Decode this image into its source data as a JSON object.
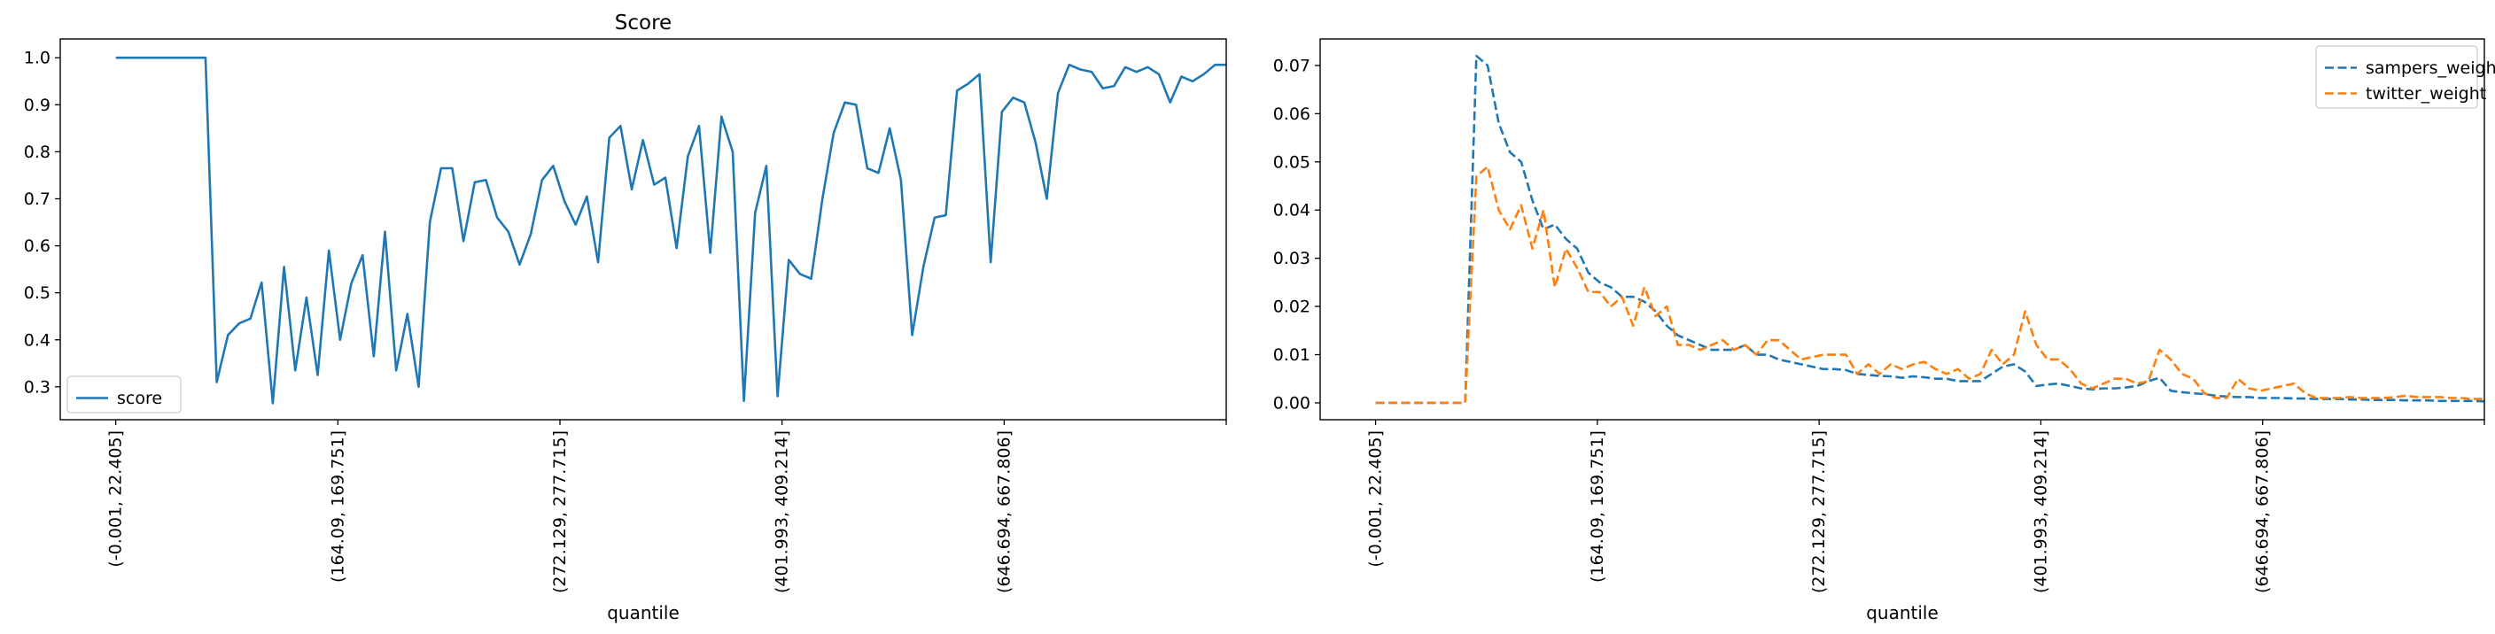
{
  "chart_data": [
    {
      "type": "line",
      "title": "Score",
      "xlabel": "quantile",
      "ylabel": "",
      "ylim": [
        0.23,
        1.04
      ],
      "xlim": [
        -0.05,
        1.0
      ],
      "x_tick_labels": [
        "(-0.001, 22.405]",
        "(164.09, 169.751]",
        "(272.129, 277.715]",
        "(401.993, 409.214]",
        "(646.694, 667.806]",
        ""
      ],
      "y_ticks": [
        0.3,
        0.4,
        0.5,
        0.6,
        0.7,
        0.8,
        0.9,
        1.0
      ],
      "y_tick_labels": [
        "0.3",
        "0.4",
        "0.5",
        "0.6",
        "0.7",
        "0.8",
        "0.9",
        "1.0"
      ],
      "legend": "lower left",
      "grid": false,
      "series": [
        {
          "name": "score",
          "color": "#1f77b4",
          "dash": "solid",
          "values": [
            1.0,
            1.0,
            1.0,
            1.0,
            1.0,
            1.0,
            1.0,
            1.0,
            1.0,
            0.31,
            0.41,
            0.435,
            0.445,
            0.522,
            0.265,
            0.555,
            0.335,
            0.49,
            0.325,
            0.59,
            0.4,
            0.52,
            0.58,
            0.365,
            0.63,
            0.335,
            0.455,
            0.3,
            0.65,
            0.765,
            0.765,
            0.61,
            0.735,
            0.74,
            0.66,
            0.63,
            0.56,
            0.625,
            0.74,
            0.77,
            0.695,
            0.645,
            0.705,
            0.565,
            0.83,
            0.855,
            0.72,
            0.825,
            0.73,
            0.745,
            0.595,
            0.79,
            0.855,
            0.585,
            0.875,
            0.8,
            0.27,
            0.67,
            0.77,
            0.28,
            0.57,
            0.54,
            0.53,
            0.7,
            0.84,
            0.905,
            0.9,
            0.765,
            0.755,
            0.85,
            0.74,
            0.41,
            0.555,
            0.66,
            0.665,
            0.93,
            0.945,
            0.965,
            0.565,
            0.885,
            0.915,
            0.905,
            0.82,
            0.7,
            0.925,
            0.985,
            0.975,
            0.97,
            0.935,
            0.94,
            0.98,
            0.97,
            0.98,
            0.965,
            0.905,
            0.96,
            0.95,
            0.965,
            0.985,
            0.985
          ]
        }
      ]
    },
    {
      "type": "line",
      "title": "",
      "xlabel": "quantile",
      "ylabel": "",
      "ylim": [
        -0.0035,
        0.0755
      ],
      "xlim": [
        -0.05,
        1.0
      ],
      "x_tick_labels": [
        "(-0.001, 22.405]",
        "(164.09, 169.751]",
        "(272.129, 277.715]",
        "(401.993, 409.214]",
        "(646.694, 667.806]",
        ""
      ],
      "y_ticks": [
        0.0,
        0.01,
        0.02,
        0.03,
        0.04,
        0.05,
        0.06,
        0.07
      ],
      "y_tick_labels": [
        "0.00",
        "0.01",
        "0.02",
        "0.03",
        "0.04",
        "0.05",
        "0.06",
        "0.07"
      ],
      "legend": "upper right",
      "grid": false,
      "series": [
        {
          "name": "sampers_weight",
          "color": "#1f77b4",
          "dash": "dashed",
          "values": [
            0.0,
            0.0,
            0.0,
            0.0,
            0.0,
            0.0,
            0.0,
            0.0,
            0.0,
            0.072,
            0.07,
            0.058,
            0.052,
            0.05,
            0.042,
            0.036,
            0.037,
            0.034,
            0.032,
            0.027,
            0.025,
            0.024,
            0.022,
            0.022,
            0.021,
            0.019,
            0.016,
            0.014,
            0.013,
            0.012,
            0.011,
            0.011,
            0.011,
            0.012,
            0.01,
            0.01,
            0.009,
            0.0085,
            0.008,
            0.0075,
            0.007,
            0.007,
            0.0068,
            0.006,
            0.0058,
            0.0056,
            0.0055,
            0.0052,
            0.0055,
            0.0053,
            0.005,
            0.005,
            0.0045,
            0.0045,
            0.0045,
            0.006,
            0.0075,
            0.008,
            0.0065,
            0.0035,
            0.0038,
            0.004,
            0.0035,
            0.003,
            0.0028,
            0.003,
            0.003,
            0.0032,
            0.0035,
            0.0045,
            0.0052,
            0.0025,
            0.0022,
            0.002,
            0.0018,
            0.0015,
            0.0013,
            0.0012,
            0.0012,
            0.001,
            0.001,
            0.001,
            0.0009,
            0.0009,
            0.0008,
            0.0008,
            0.0008,
            0.0007,
            0.0007,
            0.0006,
            0.0006,
            0.0006,
            0.0005,
            0.0005,
            0.0005,
            0.0004,
            0.0004,
            0.0004,
            0.0004,
            0.0003
          ]
        },
        {
          "name": "twitter_weight",
          "color": "#ff7f0e",
          "dash": "dashed",
          "values": [
            0.0,
            0.0,
            0.0,
            0.0,
            0.0,
            0.0,
            0.0,
            0.0,
            0.0,
            0.047,
            0.049,
            0.04,
            0.036,
            0.041,
            0.032,
            0.04,
            0.024,
            0.032,
            0.028,
            0.023,
            0.023,
            0.02,
            0.022,
            0.016,
            0.024,
            0.018,
            0.02,
            0.012,
            0.012,
            0.011,
            0.012,
            0.013,
            0.011,
            0.012,
            0.01,
            0.013,
            0.013,
            0.011,
            0.009,
            0.0095,
            0.01,
            0.01,
            0.01,
            0.006,
            0.008,
            0.006,
            0.008,
            0.007,
            0.008,
            0.0085,
            0.007,
            0.006,
            0.007,
            0.005,
            0.006,
            0.011,
            0.008,
            0.01,
            0.019,
            0.012,
            0.009,
            0.009,
            0.007,
            0.004,
            0.003,
            0.004,
            0.005,
            0.005,
            0.004,
            0.0045,
            0.011,
            0.009,
            0.006,
            0.005,
            0.002,
            0.001,
            0.001,
            0.005,
            0.003,
            0.0025,
            0.003,
            0.0035,
            0.004,
            0.002,
            0.001,
            0.001,
            0.001,
            0.0012,
            0.001,
            0.001,
            0.001,
            0.0012,
            0.0015,
            0.0012,
            0.0012,
            0.0012,
            0.001,
            0.001,
            0.0008,
            0.0008
          ]
        }
      ]
    }
  ]
}
